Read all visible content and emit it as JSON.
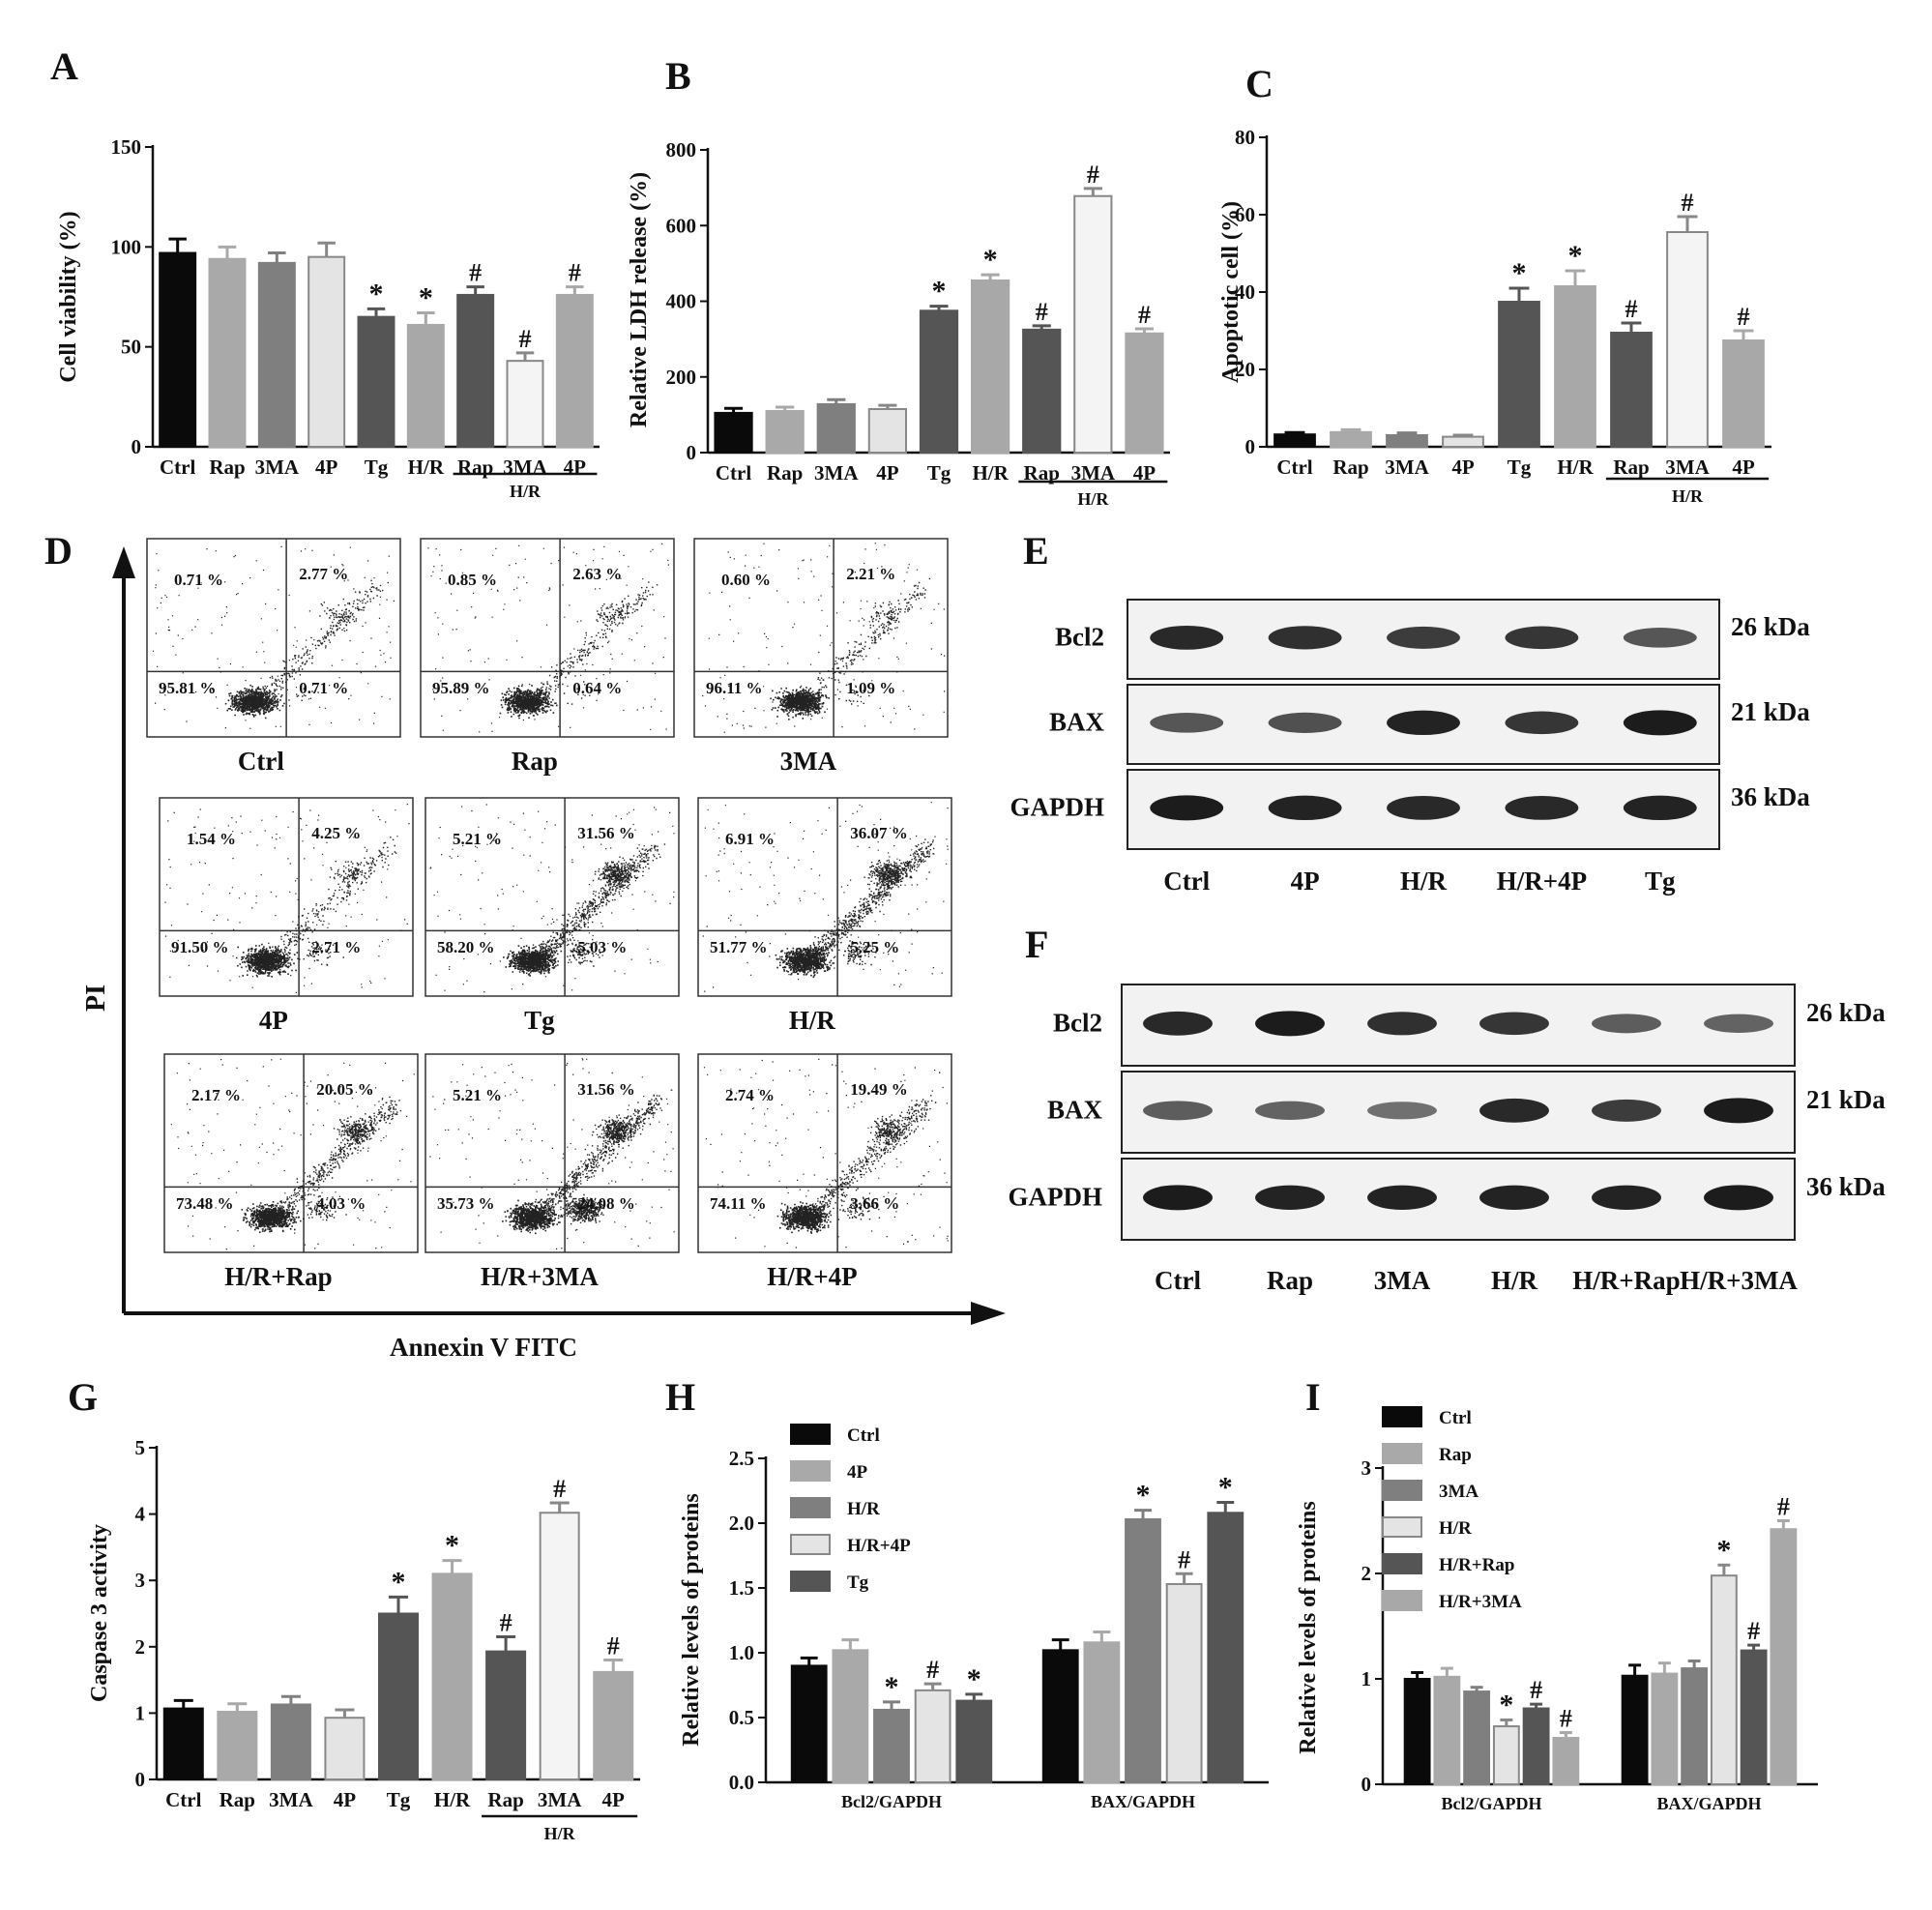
{
  "panel_letters": [
    "A",
    "B",
    "C",
    "D",
    "E",
    "F",
    "G",
    "H",
    "I"
  ],
  "colors": {
    "black": "#0a0a0a",
    "light_gray": "#a9a9a9",
    "mid_gray": "#7f7f7f",
    "pale": "#e4e4e4",
    "dark_gray": "#555555",
    "light_gray2": "#a8a8a8"
  },
  "chart_data": [
    {
      "id": "A",
      "type": "bar",
      "ylabel": "Cell viability (%)",
      "ylim": [
        0,
        150
      ],
      "yticks": [
        0,
        50,
        100,
        150
      ],
      "categories": [
        "Ctrl",
        "Rap",
        "3MA",
        "4P",
        "Tg",
        "H/R",
        "Rap",
        "3MA",
        "4P"
      ],
      "values": [
        97,
        94,
        92,
        95,
        65,
        61,
        76,
        43,
        76
      ],
      "errors": [
        7,
        6,
        5,
        7,
        4,
        6,
        4,
        4,
        4
      ],
      "marks": [
        "",
        "",
        "",
        "",
        "*",
        "*",
        "#",
        "#",
        "#"
      ],
      "colors": [
        "#0a0a0a",
        "#a9a9a9",
        "#7f7f7f",
        "#e4e4e4",
        "#555555",
        "#a8a8a8",
        "#555555",
        "#f4f4f4",
        "#a8a8a8"
      ],
      "group_label": "H/R"
    },
    {
      "id": "B",
      "type": "bar",
      "ylabel": "Relative LDH release (%)",
      "ylim": [
        0,
        800
      ],
      "yticks": [
        0,
        200,
        400,
        600,
        800
      ],
      "categories": [
        "Ctrl",
        "Rap",
        "3MA",
        "4P",
        "Tg",
        "H/R",
        "Rap",
        "3MA",
        "4P"
      ],
      "values": [
        105,
        110,
        128,
        115,
        375,
        455,
        325,
        678,
        315
      ],
      "errors": [
        12,
        10,
        12,
        10,
        12,
        15,
        10,
        20,
        12
      ],
      "marks": [
        "",
        "",
        "",
        "",
        "*",
        "*",
        "#",
        "#",
        "#"
      ],
      "colors": [
        "#0a0a0a",
        "#a9a9a9",
        "#7f7f7f",
        "#e4e4e4",
        "#555555",
        "#a8a8a8",
        "#555555",
        "#f4f4f4",
        "#a8a8a8"
      ],
      "group_label": "H/R"
    },
    {
      "id": "C",
      "type": "bar",
      "ylabel": "Apoptotic cell (%)",
      "ylim": [
        0,
        80
      ],
      "yticks": [
        0,
        20,
        40,
        60,
        80
      ],
      "categories": [
        "Ctrl",
        "Rap",
        "3MA",
        "4P",
        "Tg",
        "H/R",
        "Rap",
        "3MA",
        "4P"
      ],
      "values": [
        3.2,
        3.8,
        3.0,
        2.6,
        37.5,
        41.5,
        29.5,
        55.5,
        27.5
      ],
      "errors": [
        0.5,
        0.6,
        0.6,
        0.4,
        3.5,
        4,
        2.5,
        4,
        2.5
      ],
      "marks": [
        "",
        "",
        "",
        "",
        "*",
        "*",
        "#",
        "#",
        "#"
      ],
      "colors": [
        "#0a0a0a",
        "#a9a9a9",
        "#7f7f7f",
        "#e4e4e4",
        "#555555",
        "#a8a8a8",
        "#555555",
        "#f4f4f4",
        "#a8a8a8"
      ],
      "group_label": "H/R"
    },
    {
      "id": "G",
      "type": "bar",
      "ylabel": "Caspase 3 activity",
      "ylim": [
        0,
        5
      ],
      "yticks": [
        0,
        1,
        2,
        3,
        4,
        5
      ],
      "categories": [
        "Ctrl",
        "Rap",
        "3MA",
        "4P",
        "Tg",
        "H/R",
        "Rap",
        "3MA",
        "4P"
      ],
      "values": [
        1.07,
        1.02,
        1.13,
        0.93,
        2.5,
        3.1,
        1.93,
        4.02,
        1.62
      ],
      "errors": [
        0.12,
        0.12,
        0.12,
        0.12,
        0.25,
        0.2,
        0.22,
        0.15,
        0.18
      ],
      "marks": [
        "",
        "",
        "",
        "",
        "*",
        "*",
        "#",
        "#",
        "#"
      ],
      "colors": [
        "#0a0a0a",
        "#a9a9a9",
        "#7f7f7f",
        "#e4e4e4",
        "#555555",
        "#a8a8a8",
        "#555555",
        "#f4f4f4",
        "#a8a8a8"
      ],
      "group_label": "H/R"
    },
    {
      "id": "H",
      "type": "bar",
      "ylabel": "Relative levels of  proteins",
      "ylim": [
        0,
        2.5
      ],
      "yticks": [
        0.0,
        0.5,
        1.0,
        1.5,
        2.0,
        2.5
      ],
      "tick_decimals": 1,
      "categories": [
        "Bcl2/GAPDH",
        "BAX/GAPDH"
      ],
      "series": [
        {
          "name": "Ctrl",
          "values": [
            0.9,
            1.02
          ],
          "errors": [
            0.06,
            0.08
          ],
          "marks": [
            "",
            ""
          ],
          "color": "#0a0a0a"
        },
        {
          "name": "4P",
          "values": [
            1.02,
            1.08
          ],
          "errors": [
            0.08,
            0.08
          ],
          "marks": [
            "",
            ""
          ],
          "color": "#a9a9a9"
        },
        {
          "name": "H/R",
          "values": [
            0.56,
            2.03
          ],
          "errors": [
            0.06,
            0.07
          ],
          "marks": [
            "*",
            "*"
          ],
          "color": "#7f7f7f"
        },
        {
          "name": "H/R+4P",
          "values": [
            0.71,
            1.53
          ],
          "errors": [
            0.05,
            0.08
          ],
          "marks": [
            "#",
            "#"
          ],
          "color": "#e4e4e4"
        },
        {
          "name": "Tg",
          "values": [
            0.63,
            2.08
          ],
          "errors": [
            0.05,
            0.08
          ],
          "marks": [
            "*",
            "*"
          ],
          "color": "#555555"
        }
      ]
    },
    {
      "id": "I",
      "type": "bar",
      "ylabel": "Relative levels of  proteins",
      "ylim": [
        0,
        3
      ],
      "yticks": [
        0,
        1,
        2,
        3
      ],
      "categories": [
        "Bcl2/GAPDH",
        "BAX/GAPDH"
      ],
      "series": [
        {
          "name": "Ctrl",
          "values": [
            1.0,
            1.03
          ],
          "errors": [
            0.06,
            0.1
          ],
          "marks": [
            "",
            ""
          ],
          "color": "#0a0a0a"
        },
        {
          "name": "Rap",
          "values": [
            1.02,
            1.05
          ],
          "errors": [
            0.08,
            0.1
          ],
          "marks": [
            "",
            ""
          ],
          "color": "#a9a9a9"
        },
        {
          "name": "3MA",
          "values": [
            0.88,
            1.1
          ],
          "errors": [
            0.04,
            0.07
          ],
          "marks": [
            "",
            ""
          ],
          "color": "#7f7f7f"
        },
        {
          "name": "H/R",
          "values": [
            0.55,
            1.98
          ],
          "errors": [
            0.06,
            0.1
          ],
          "marks": [
            "*",
            "*"
          ],
          "color": "#e4e4e4"
        },
        {
          "name": "H/R+Rap",
          "values": [
            0.72,
            1.27
          ],
          "errors": [
            0.04,
            0.05
          ],
          "marks": [
            "#",
            "#"
          ],
          "color": "#555555"
        },
        {
          "name": "H/R+3MA",
          "values": [
            0.44,
            2.42
          ],
          "errors": [
            0.05,
            0.08
          ],
          "marks": [
            "#",
            "#"
          ],
          "color": "#a8a8a8"
        }
      ]
    }
  ],
  "flow": {
    "x_axis_label": "Annexin V FITC",
    "y_axis_label": "PI",
    "plots": [
      {
        "label": "Ctrl",
        "q": [
          "0.71 %",
          "2.77 %",
          "95.81 %",
          "0.71 %"
        ]
      },
      {
        "label": "Rap",
        "q": [
          "0.85 %",
          "2.63 %",
          "95.89 %",
          "0.64 %"
        ]
      },
      {
        "label": "3MA",
        "q": [
          "0.60 %",
          "2.21 %",
          "96.11 %",
          "1.09 %"
        ]
      },
      {
        "label": "4P",
        "q": [
          "1.54 %",
          "4.25 %",
          "91.50 %",
          "2.71 %"
        ]
      },
      {
        "label": "Tg",
        "q": [
          "5.21 %",
          "31.56 %",
          "58.20 %",
          "5.03 %"
        ]
      },
      {
        "label": "H/R",
        "q": [
          "6.91 %",
          "36.07 %",
          "51.77 %",
          "5.25 %"
        ]
      },
      {
        "label": "H/R+Rap",
        "q": [
          "2.17 %",
          "20.05 %",
          "73.48 %",
          "4.03 %"
        ]
      },
      {
        "label": "H/R+3MA",
        "q": [
          "5.21 %",
          "31.56 %",
          "35.73 %",
          "24.08 %"
        ]
      },
      {
        "label": "H/R+4P",
        "q": [
          "2.74 %",
          "19.49 %",
          "74.11 %",
          "3.66 %"
        ]
      }
    ]
  },
  "blots": [
    {
      "id": "E",
      "lanes": [
        "Ctrl",
        "4P",
        "H/R",
        "H/R+4P",
        "Tg"
      ],
      "rows": [
        {
          "name": "Bcl2",
          "kda": "26 kDa",
          "intensity": [
            0.9,
            0.85,
            0.75,
            0.8,
            0.55
          ]
        },
        {
          "name": "BAX",
          "kda": "21 kDa",
          "intensity": [
            0.55,
            0.6,
            0.95,
            0.8,
            1.0
          ]
        },
        {
          "name": "GAPDH",
          "kda": "36 kDa",
          "intensity": [
            1.0,
            0.95,
            0.9,
            0.9,
            0.95
          ]
        }
      ]
    },
    {
      "id": "F",
      "lanes": [
        "Ctrl",
        "Rap",
        "3MA",
        "H/R",
        "H/R+Rap",
        "H/R+3MA"
      ],
      "rows": [
        {
          "name": "Bcl2",
          "kda": "26 kDa",
          "intensity": [
            0.9,
            1.0,
            0.85,
            0.8,
            0.5,
            0.45
          ]
        },
        {
          "name": "BAX",
          "kda": "21 kDa",
          "intensity": [
            0.5,
            0.45,
            0.35,
            0.9,
            0.75,
            1.0
          ]
        },
        {
          "name": "GAPDH",
          "kda": "36 kDa",
          "intensity": [
            1.0,
            0.95,
            0.95,
            0.95,
            0.95,
            1.0
          ]
        }
      ]
    }
  ]
}
